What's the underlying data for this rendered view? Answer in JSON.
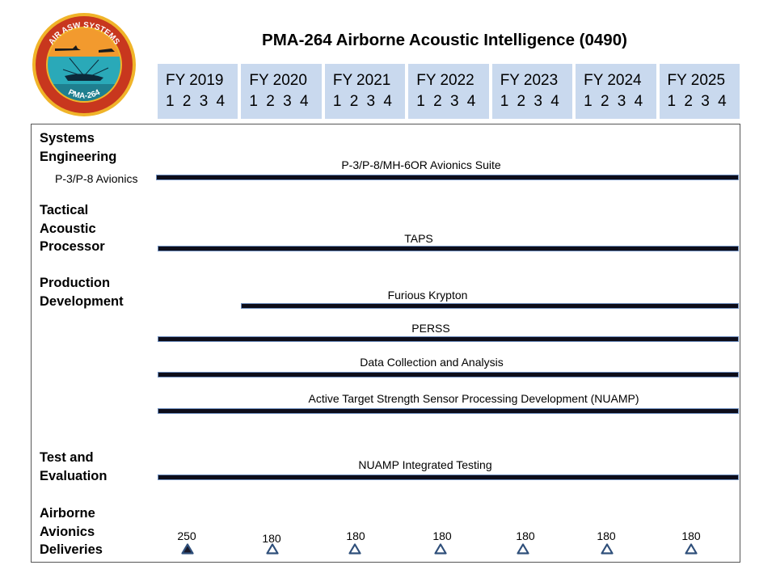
{
  "logo": {
    "top_text": "AIR ASW SYSTEMS",
    "bottom_text": "PMA-264"
  },
  "title": "PMA-264 Airborne Acoustic Intelligence (0490)",
  "fiscal_years": [
    {
      "label": "FY 2019",
      "quarters": "1 2 3 4"
    },
    {
      "label": "FY 2020",
      "quarters": "1 2 3 4"
    },
    {
      "label": "FY 2021",
      "quarters": "1 2 3 4"
    },
    {
      "label": "FY 2022",
      "quarters": "1 2 3 4"
    },
    {
      "label": "FY 2023",
      "quarters": "1 2 3 4"
    },
    {
      "label": "FY 2024",
      "quarters": "1 2 3 4"
    },
    {
      "label": "FY 2025",
      "quarters": "1 2 3 4"
    }
  ],
  "sections": {
    "systems_engineering": [
      "Systems",
      "Engineering"
    ],
    "tactical_acoustic_processor": [
      "Tactical",
      "Acoustic",
      "Processor"
    ],
    "production_development": [
      "Production",
      "Development"
    ],
    "test_evaluation": [
      "Test and",
      "Evaluation"
    ],
    "airborne_avionics_deliveries": [
      "Airborne",
      "Avionics",
      "Deliveries"
    ]
  },
  "sublabels": {
    "avionics": "P-3/P-8 Avionics"
  },
  "bars": [
    {
      "label": "P-3/P-8/MH-6OR Avionics Suite",
      "start": "FY 2019 Q1",
      "end": "FY 2025 Q4"
    },
    {
      "label": "TAPS",
      "start": "FY 2019 Q1",
      "end": "FY 2025 Q4"
    },
    {
      "label": "Furious Krypton",
      "start": "FY 2020 Q1",
      "end": "FY 2025 Q4"
    },
    {
      "label": "PERSS",
      "start": "FY 2019 Q1",
      "end": "FY 2025 Q4"
    },
    {
      "label": "Data Collection and Analysis",
      "start": "FY 2019 Q1",
      "end": "FY 2025 Q4"
    },
    {
      "label": "Active Target Strength Sensor Processing Development (NUAMP)",
      "start": "FY 2019 Q1",
      "end": "FY 2025 Q4"
    },
    {
      "label": "NUAMP Integrated Testing",
      "start": "FY 2019 Q1",
      "end": "FY 2025 Q4"
    }
  ],
  "deliveries": [
    {
      "fy": "FY 2019",
      "count": "250",
      "marker": "filled"
    },
    {
      "fy": "FY 2020",
      "count": "180",
      "marker": "hollow"
    },
    {
      "fy": "FY 2021",
      "count": "180",
      "marker": "hollow"
    },
    {
      "fy": "FY 2022",
      "count": "180",
      "marker": "hollow"
    },
    {
      "fy": "FY 2023",
      "count": "180",
      "marker": "hollow"
    },
    {
      "fy": "FY 2024",
      "count": "180",
      "marker": "hollow"
    },
    {
      "fy": "FY 2025",
      "count": "180",
      "marker": "hollow"
    }
  ],
  "colors": {
    "header_fill": "#c9d9ee",
    "bar": "#0d0d1a",
    "bar_edge": "#6f8fbf",
    "marker": "#2f4f7a"
  }
}
